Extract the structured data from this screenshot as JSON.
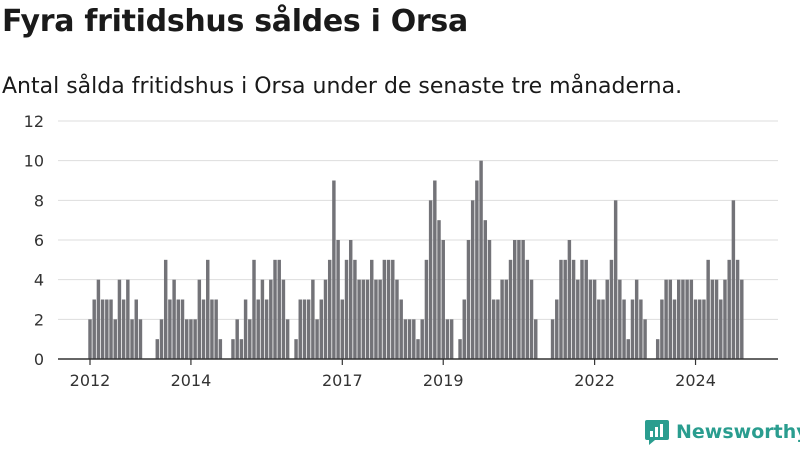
{
  "title": "Fyra fritidshus såldes i Orsa",
  "subtitle": "Antal sålda fritidshus i Orsa under de senaste tre månaderna.",
  "brand": "Newsworthy",
  "colors": {
    "bar": "#737378",
    "highlight": "#2a9d8f",
    "grid": "#dddddd",
    "axis": "#333333",
    "brand": "#2a9d8f"
  },
  "chart_data": {
    "type": "bar",
    "ylim": [
      0,
      12
    ],
    "yticks": [
      0,
      2,
      4,
      6,
      8,
      10,
      12
    ],
    "grid": true,
    "x_start": "2012-01",
    "x_end": "2025-01",
    "xticks": [
      {
        "x": "2012-01",
        "label": "2012"
      },
      {
        "x": "2014-01",
        "label": "2014"
      },
      {
        "x": "2017-01",
        "label": "2017"
      },
      {
        "x": "2019-01",
        "label": "2019"
      },
      {
        "x": "2022-01",
        "label": "2022"
      },
      {
        "x": "2024-01",
        "label": "2024"
      }
    ],
    "values": [
      2,
      3,
      4,
      3,
      3,
      3,
      2,
      4,
      3,
      4,
      2,
      3,
      2,
      null,
      null,
      null,
      1,
      2,
      5,
      3,
      4,
      3,
      3,
      2,
      2,
      2,
      4,
      3,
      5,
      3,
      3,
      1,
      null,
      null,
      1,
      2,
      1,
      3,
      2,
      5,
      3,
      4,
      3,
      4,
      5,
      5,
      4,
      2,
      null,
      1,
      3,
      3,
      3,
      4,
      2,
      3,
      4,
      5,
      9,
      6,
      3,
      5,
      6,
      5,
      4,
      4,
      4,
      5,
      4,
      4,
      5,
      5,
      5,
      4,
      3,
      2,
      2,
      2,
      1,
      2,
      5,
      8,
      9,
      7,
      6,
      2,
      2,
      null,
      1,
      3,
      6,
      8,
      9,
      10,
      7,
      6,
      3,
      3,
      4,
      4,
      5,
      6,
      6,
      6,
      5,
      4,
      2,
      null,
      null,
      null,
      2,
      3,
      5,
      5,
      6,
      5,
      4,
      5,
      5,
      4,
      4,
      3,
      3,
      4,
      5,
      8,
      4,
      3,
      1,
      3,
      4,
      3,
      2,
      null,
      null,
      1,
      3,
      4,
      4,
      3,
      4,
      4,
      4,
      4,
      3,
      3,
      3,
      5,
      4,
      4,
      3,
      4,
      5,
      8,
      5,
      4
    ],
    "highlight_index": 157,
    "annotation": "4"
  }
}
